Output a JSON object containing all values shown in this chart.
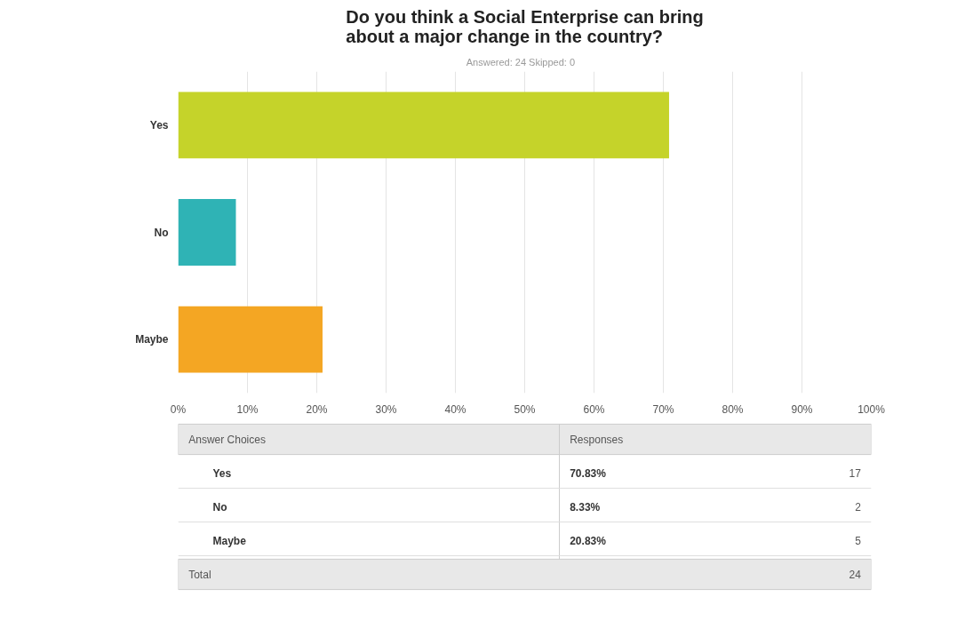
{
  "chart_data": {
    "type": "bar",
    "orientation": "horizontal",
    "title": "Do you think a Social Enterprise can bring\nabout a major change in the country?",
    "subtitle": "Answered: 24    Skipped: 0",
    "categories": [
      "Yes",
      "No",
      "Maybe"
    ],
    "values": [
      70.83,
      8.33,
      20.83
    ],
    "colors": [
      "#c5d32a",
      "#2fb3b5",
      "#f4a623"
    ],
    "xlim": [
      0,
      100
    ],
    "xticks": [
      {
        "value": 0,
        "label": "0%"
      },
      {
        "value": 10,
        "label": "10%"
      },
      {
        "value": 20,
        "label": "20%"
      },
      {
        "value": 30,
        "label": "30%"
      },
      {
        "value": 40,
        "label": "40%"
      },
      {
        "value": 50,
        "label": "50%"
      },
      {
        "value": 60,
        "label": "60%"
      },
      {
        "value": 70,
        "label": "70%"
      },
      {
        "value": 80,
        "label": "80%"
      },
      {
        "value": 90,
        "label": "90%"
      },
      {
        "value": 100,
        "label": "100%"
      }
    ],
    "grid": "x",
    "annotations": [
      "Answer Choices",
      "Responses",
      "70.83%",
      "17",
      "8.33%",
      "2",
      "20.83%",
      "5",
      "Total",
      "24"
    ]
  }
}
